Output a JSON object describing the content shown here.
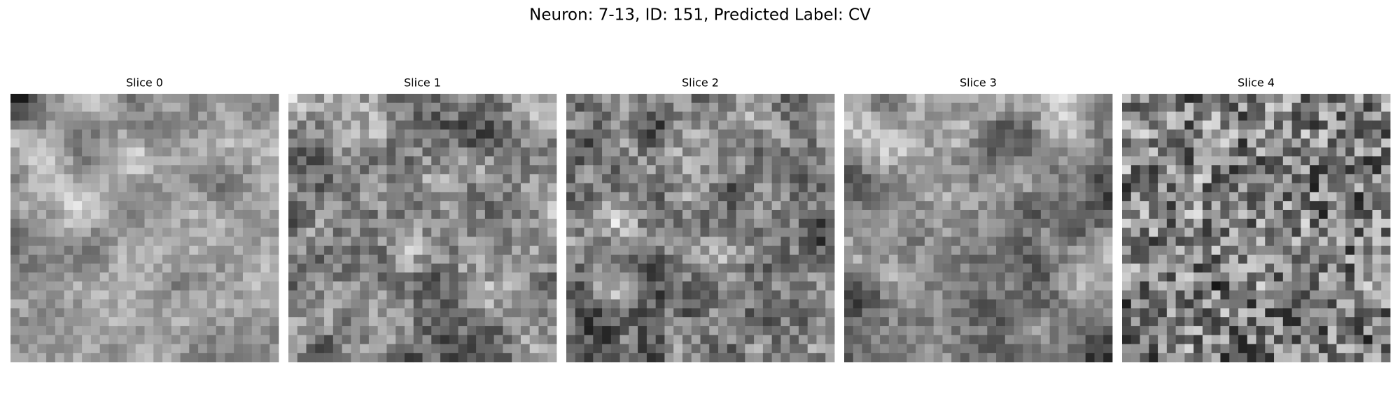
{
  "title": "Neuron: 7-13, ID: 151, Predicted Label: CV",
  "panels": [
    {
      "title": "Slice 0"
    },
    {
      "title": "Slice 1"
    },
    {
      "title": "Slice 2"
    },
    {
      "title": "Slice 3"
    },
    {
      "title": "Slice 4"
    }
  ]
}
